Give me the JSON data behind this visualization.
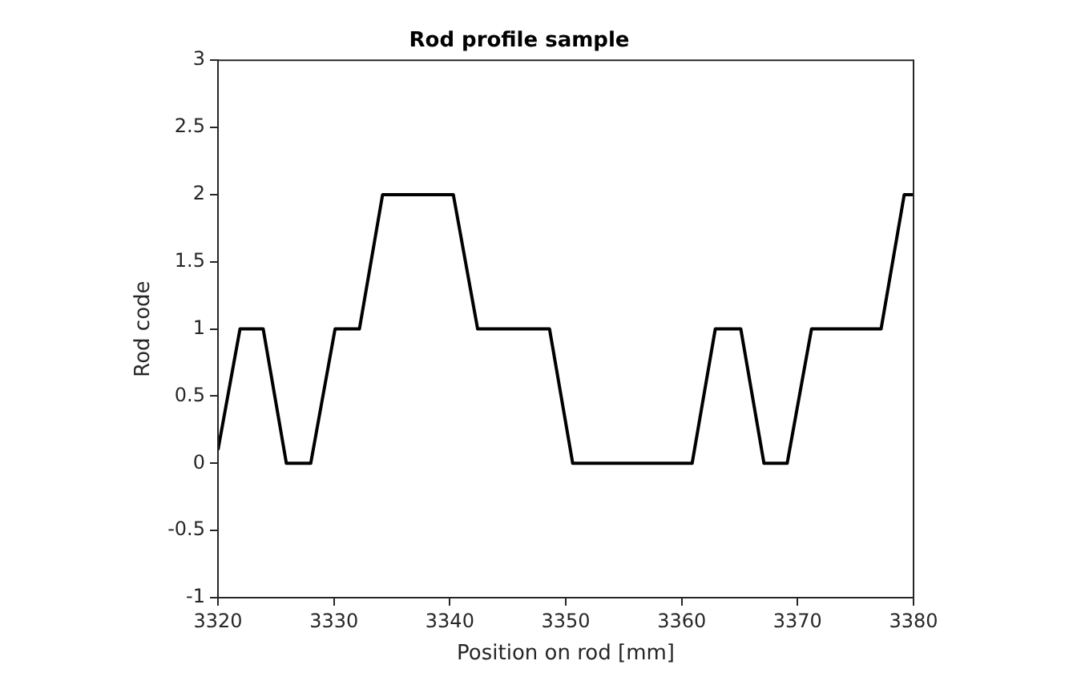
{
  "chart_data": {
    "type": "line",
    "title": "Rod profile sample",
    "xlabel": "Position on rod [mm]",
    "ylabel": "Rod code",
    "series": [
      {
        "color": "#000000",
        "x": [
          3320,
          3321.9,
          3323.9,
          3325.9,
          3328.0,
          3330.1,
          3332.2,
          3334.2,
          3340.3,
          3342.4,
          3348.6,
          3350.6,
          3360.9,
          3362.9,
          3365.1,
          3367.1,
          3369.1,
          3371.2,
          3377.2,
          3379.2,
          3380
        ],
        "values": [
          0.1,
          1,
          1,
          0,
          0,
          1,
          1,
          2,
          2,
          1,
          1,
          0,
          0,
          1,
          1,
          0,
          0,
          1,
          1,
          2,
          2
        ]
      }
    ],
    "xlim": [
      3320,
      3380
    ],
    "xticks": [
      3320,
      3330,
      3340,
      3350,
      3360,
      3370,
      3380
    ],
    "ylim": [
      -1,
      3
    ],
    "yticks": [
      -1,
      -0.5,
      0,
      0.5,
      1,
      1.5,
      2,
      2.5,
      3
    ],
    "grid": false,
    "legend": false,
    "marker": "none",
    "line_style": "solid"
  }
}
